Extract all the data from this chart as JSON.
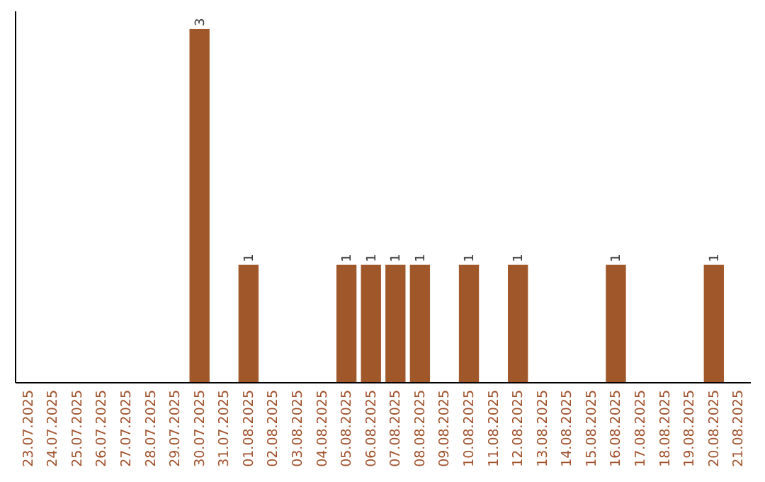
{
  "chart_data": {
    "type": "bar",
    "categories": [
      "23.07.2025",
      "24.07.2025",
      "25.07.2025",
      "26.07.2025",
      "27.07.2025",
      "28.07.2025",
      "29.07.2025",
      "30.07.2025",
      "31.07.2025",
      "01.08.2025",
      "02.08.2025",
      "03.08.2025",
      "04.08.2025",
      "05.08.2025",
      "06.08.2025",
      "07.08.2025",
      "08.08.2025",
      "09.08.2025",
      "10.08.2025",
      "11.08.2025",
      "12.08.2025",
      "13.08.2025",
      "14.08.2025",
      "15.08.2025",
      "16.08.2025",
      "17.08.2025",
      "18.08.2025",
      "19.08.2025",
      "20.08.2025",
      "21.08.2025"
    ],
    "values": [
      0,
      0,
      0,
      0,
      0,
      0,
      0,
      3,
      0,
      1,
      0,
      0,
      0,
      1,
      1,
      1,
      1,
      0,
      1,
      0,
      1,
      0,
      0,
      0,
      1,
      0,
      0,
      0,
      1,
      0
    ],
    "color": "#a0572a",
    "value_labels": [
      null,
      null,
      null,
      null,
      null,
      null,
      null,
      "3",
      null,
      "1",
      null,
      null,
      null,
      "1",
      "1",
      "1",
      "1",
      null,
      "1",
      null,
      "1",
      null,
      null,
      null,
      "1",
      null,
      null,
      null,
      "1",
      null
    ],
    "tick_labels": "x"
  }
}
